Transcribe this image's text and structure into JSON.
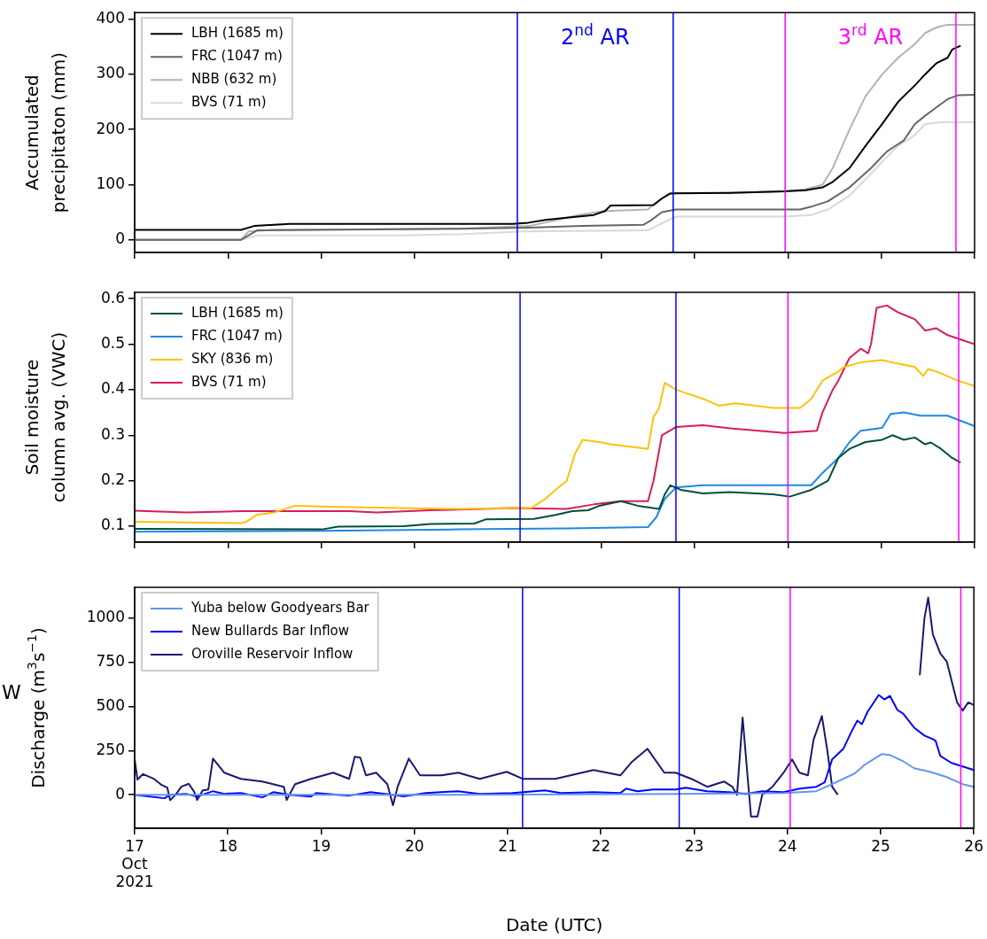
{
  "chart_data": [
    {
      "type": "line",
      "ylabel": "Accumulated precipitaton (mm)",
      "xlim": [
        17,
        26
      ],
      "xticks": [
        17,
        18,
        19,
        20,
        21,
        22,
        23,
        24,
        25,
        26
      ],
      "ylim": [
        -23,
        412
      ],
      "yticks": [
        0,
        100,
        200,
        300,
        400
      ],
      "tick_labels": "y",
      "legend": "top left",
      "marker": "none",
      "series": [
        {
          "name": "LBH (1685 m)",
          "color": "#000000",
          "x": [
            17,
            18.14,
            18.28,
            18.66,
            21.05,
            21.22,
            21.4,
            21.63,
            21.92,
            22.04,
            22.1,
            22.56,
            22.65,
            22.74,
            23.38,
            23.96,
            24.19,
            24.37,
            24.48,
            24.66,
            24.83,
            25.01,
            25.18,
            25.36,
            25.47,
            25.59,
            25.71,
            25.76,
            25.85
          ],
          "values": [
            18,
            18,
            25,
            29,
            29,
            31,
            36,
            40,
            45,
            52,
            62,
            63,
            75,
            84,
            85,
            88,
            90,
            95,
            105,
            130,
            170,
            210,
            250,
            280,
            300,
            320,
            330,
            345,
            352
          ]
        },
        {
          "name": "FRC (1047 m)",
          "color": "#666666",
          "x": [
            17,
            18.14,
            18.31,
            20.47,
            21.22,
            21.8,
            22.45,
            22.53,
            22.65,
            22.8,
            24.13,
            24.25,
            24.43,
            24.66,
            24.89,
            25.06,
            25.24,
            25.36,
            25.47,
            25.59,
            25.71,
            25.82,
            26
          ],
          "values": [
            0,
            0,
            17,
            20,
            22,
            25,
            27,
            35,
            50,
            55,
            55,
            60,
            70,
            95,
            130,
            160,
            180,
            210,
            225,
            240,
            255,
            262,
            263
          ]
        },
        {
          "name": "NBB (632 m)",
          "color": "#b3b3b3",
          "x": [
            17,
            18.14,
            18.22,
            18.49,
            20.47,
            21.22,
            21.51,
            21.75,
            22.04,
            22.5,
            22.56,
            22.74,
            23.38,
            23.96,
            24.19,
            24.37,
            24.48,
            24.66,
            24.83,
            25.01,
            25.18,
            25.36,
            25.47,
            25.59,
            25.71,
            26
          ],
          "values": [
            0,
            0,
            15,
            18,
            20,
            25,
            35,
            45,
            52,
            55,
            65,
            85,
            85,
            88,
            92,
            100,
            130,
            200,
            260,
            300,
            330,
            355,
            375,
            385,
            390,
            390
          ]
        },
        {
          "name": "BVS (71 m)",
          "color": "#d9d9d9",
          "x": [
            17,
            18.14,
            18.31,
            19.88,
            20.47,
            21.16,
            22.5,
            22.65,
            22.8,
            23.96,
            24.25,
            24.43,
            24.66,
            24.89,
            25.06,
            25.18,
            25.36,
            25.47,
            25.64,
            26
          ],
          "values": [
            0,
            0,
            8,
            8,
            10,
            15,
            17,
            30,
            42,
            42,
            45,
            55,
            80,
            120,
            150,
            170,
            190,
            210,
            213,
            213
          ]
        }
      ],
      "ref_lines": [
        {
          "axis": "x",
          "value": 21.1,
          "color": "#0000ff",
          "label": "2$^{nd}$ AR"
        },
        {
          "axis": "x",
          "value": 22.77,
          "color": "#0000ff"
        },
        {
          "axis": "x",
          "value": 23.97,
          "color": "#ff00ff",
          "label": "3$^{rd}$ AR"
        },
        {
          "axis": "x",
          "value": 25.8,
          "color": "#ff00ff"
        }
      ]
    },
    {
      "type": "line",
      "ylabel": "Soil moisture column avg. (VWC)",
      "xlim": [
        17,
        26
      ],
      "xticks": [
        17,
        18,
        19,
        20,
        21,
        22,
        23,
        24,
        25,
        26
      ],
      "ylim": [
        0.065,
        0.614
      ],
      "yticks": [
        0.1,
        0.2,
        0.3,
        0.4,
        0.5,
        0.6
      ],
      "tick_labels": "y",
      "legend": "top left",
      "marker": "none",
      "series": [
        {
          "name": "LBH (1685 m)",
          "color": "#004d40",
          "x": [
            17,
            19.01,
            19.18,
            19.88,
            20.17,
            20.64,
            20.76,
            21.28,
            21.51,
            21.69,
            21.86,
            21.98,
            22.1,
            22.21,
            22.39,
            22.62,
            22.68,
            22.74,
            22.85,
            23.09,
            23.38,
            23.84,
            24.02,
            24.25,
            24.43,
            24.54,
            24.66,
            24.83,
            25.01,
            25.12,
            25.24,
            25.36,
            25.47,
            25.53,
            25.64,
            25.76,
            25.85
          ],
          "values": [
            0.094,
            0.093,
            0.099,
            0.1,
            0.105,
            0.106,
            0.115,
            0.116,
            0.125,
            0.133,
            0.135,
            0.145,
            0.15,
            0.155,
            0.145,
            0.138,
            0.17,
            0.19,
            0.18,
            0.172,
            0.175,
            0.17,
            0.165,
            0.18,
            0.2,
            0.25,
            0.27,
            0.285,
            0.29,
            0.3,
            0.29,
            0.295,
            0.28,
            0.284,
            0.27,
            0.25,
            0.24
          ]
        },
        {
          "name": "FRC (1047 m)",
          "color": "#1e88e5",
          "x": [
            17,
            19.01,
            20.47,
            21.63,
            22.5,
            22.59,
            22.68,
            22.8,
            23.09,
            24.25,
            24.37,
            24.54,
            24.66,
            24.78,
            25.01,
            25.1,
            25.24,
            25.42,
            25.71,
            26
          ],
          "values": [
            0.088,
            0.09,
            0.093,
            0.095,
            0.098,
            0.12,
            0.16,
            0.185,
            0.19,
            0.19,
            0.217,
            0.25,
            0.285,
            0.31,
            0.316,
            0.347,
            0.35,
            0.343,
            0.343,
            0.32
          ]
        },
        {
          "name": "SKY (836 m)",
          "color": "#ffc107",
          "x": [
            17,
            18.14,
            18.19,
            18.31,
            18.49,
            18.72,
            19.3,
            19.88,
            20.47,
            21.05,
            21.25,
            21.4,
            21.51,
            21.63,
            21.72,
            21.8,
            21.98,
            22.1,
            22.5,
            22.56,
            22.62,
            22.68,
            22.8,
            23.09,
            23.26,
            23.44,
            23.84,
            24.13,
            24.25,
            24.37,
            24.54,
            24.6,
            24.78,
            25.01,
            25.12,
            25.36,
            25.45,
            25.5,
            25.59,
            25.82,
            26
          ],
          "values": [
            0.11,
            0.107,
            0.109,
            0.125,
            0.13,
            0.145,
            0.142,
            0.14,
            0.138,
            0.14,
            0.14,
            0.16,
            0.18,
            0.2,
            0.26,
            0.29,
            0.285,
            0.28,
            0.27,
            0.34,
            0.36,
            0.415,
            0.4,
            0.38,
            0.365,
            0.37,
            0.36,
            0.36,
            0.38,
            0.42,
            0.44,
            0.45,
            0.46,
            0.465,
            0.46,
            0.45,
            0.43,
            0.445,
            0.44,
            0.42,
            0.408
          ]
        },
        {
          "name": "BVS (71 m)",
          "color": "#d81b60",
          "x": [
            17,
            17.55,
            18.14,
            19.3,
            19.59,
            20.17,
            21.05,
            21.63,
            21.92,
            22.21,
            22.5,
            22.56,
            22.65,
            22.8,
            23.09,
            23.38,
            23.96,
            24.31,
            24.37,
            24.48,
            24.54,
            24.66,
            24.78,
            24.86,
            24.89,
            24.95,
            25.06,
            25.18,
            25.36,
            25.47,
            25.59,
            25.71,
            26
          ],
          "values": [
            0.134,
            0.13,
            0.133,
            0.133,
            0.13,
            0.135,
            0.14,
            0.138,
            0.148,
            0.155,
            0.155,
            0.2,
            0.3,
            0.318,
            0.322,
            0.315,
            0.305,
            0.31,
            0.35,
            0.4,
            0.42,
            0.47,
            0.49,
            0.48,
            0.5,
            0.58,
            0.585,
            0.57,
            0.555,
            0.53,
            0.535,
            0.52,
            0.5
          ]
        }
      ],
      "ref_lines": [
        {
          "axis": "x",
          "value": 21.13,
          "color": "#0000ff"
        },
        {
          "axis": "x",
          "value": 22.8,
          "color": "#0000ff"
        },
        {
          "axis": "x",
          "value": 24.0,
          "color": "#ff00ff"
        },
        {
          "axis": "x",
          "value": 25.83,
          "color": "#ff00ff"
        }
      ]
    },
    {
      "type": "line",
      "ylabel": "Discharge (m$^{3}$s$^{−1}$)",
      "xlabel": "Date (UTC)",
      "xlim": [
        17,
        26
      ],
      "xticks": [
        {
          "value": 17,
          "label": "17\nOct\n2021"
        },
        18,
        19,
        20,
        21,
        22,
        23,
        24,
        25,
        26
      ],
      "ylim": [
        -190,
        1175
      ],
      "yticks": [
        0,
        250,
        500,
        750,
        1000
      ],
      "legend": "top left",
      "marker": "none",
      "series": [
        {
          "name": "Yuba below Goodyears Bar",
          "color": "#6495ed",
          "x": [
            17,
            20.47,
            22.8,
            23.96,
            24.31,
            24.48,
            24.72,
            24.83,
            24.95,
            25.01,
            25.1,
            25.24,
            25.36,
            25.53,
            25.71,
            25.88,
            26
          ],
          "values": [
            0,
            0,
            5,
            10,
            20,
            60,
            120,
            170,
            210,
            230,
            225,
            190,
            150,
            130,
            100,
            60,
            45
          ]
        },
        {
          "name": "New Bullards Bar Inflow",
          "color": "#0000ff",
          "x": [
            17,
            17.32,
            17.38,
            17.55,
            17.67,
            17.84,
            17.96,
            18.14,
            18.37,
            18.49,
            18.66,
            18.89,
            18.95,
            19.3,
            19.53,
            19.77,
            19.88,
            20.12,
            20.47,
            20.7,
            21.05,
            21.4,
            21.57,
            21.92,
            22.21,
            22.27,
            22.39,
            22.56,
            22.8,
            22.91,
            23.14,
            23.38,
            23.55,
            23.73,
            23.96,
            24.13,
            24.31,
            24.4,
            24.48,
            24.6,
            24.69,
            24.75,
            24.8,
            24.86,
            24.98,
            25.04,
            25.1,
            25.18,
            25.24,
            25.36,
            25.47,
            25.56,
            25.59,
            25.64,
            25.76,
            25.88,
            26
          ],
          "values": [
            0,
            -20,
            0,
            5,
            -10,
            20,
            5,
            10,
            -15,
            15,
            0,
            -10,
            10,
            -5,
            15,
            0,
            -10,
            10,
            20,
            5,
            10,
            25,
            10,
            15,
            10,
            35,
            20,
            30,
            30,
            40,
            20,
            15,
            5,
            20,
            15,
            35,
            45,
            70,
            200,
            260,
            360,
            420,
            400,
            470,
            565,
            540,
            560,
            480,
            460,
            380,
            335,
            315,
            305,
            220,
            180,
            160,
            140
          ]
        },
        {
          "name": "Oroville Reservoir Inflow",
          "color": "#191970",
          "x": [
            17,
            17.03,
            17.09,
            17.2,
            17.29,
            17.35,
            17.38,
            17.44,
            17.5,
            17.58,
            17.64,
            17.67,
            17.73,
            17.79,
            17.84,
            17.96,
            18.14,
            18.37,
            18.6,
            18.63,
            18.72,
            18.89,
            19.13,
            19.3,
            19.36,
            19.42,
            19.48,
            19.59,
            19.71,
            19.77,
            19.82,
            19.94,
            20.06,
            20.29,
            20.47,
            20.7,
            20.99,
            21.16,
            21.51,
            21.92,
            22.21,
            22.33,
            22.5,
            22.68,
            22.8,
            22.97,
            23.14,
            23.32,
            23.41,
            23.46,
            23.52,
            23.58,
            23.61,
            23.68,
            23.73,
            23.84,
            23.96,
            24.05,
            24.13,
            24.22,
            24.28,
            24.37,
            24.43,
            24.48,
            24.54,
            25.0,
            25.42,
            25.47,
            25.51,
            25.56,
            25.64,
            25.71,
            25.82,
            25.88,
            25.94,
            26
          ],
          "values": [
            200,
            86,
            117,
            92,
            55,
            40,
            -31,
            0,
            45,
            62,
            15,
            -30,
            25,
            30,
            205,
            125,
            90,
            75,
            45,
            -30,
            60,
            90,
            125,
            90,
            215,
            210,
            110,
            125,
            60,
            -60,
            45,
            205,
            110,
            110,
            125,
            90,
            130,
            90,
            90,
            140,
            110,
            185,
            260,
            125,
            125,
            90,
            45,
            75,
            45,
            0,
            437,
            60,
            -123,
            -123,
            0,
            45,
            125,
            200,
            125,
            110,
            310,
            446,
            245,
            45,
            0,
            null,
            677,
            1000,
            1117,
            908,
            800,
            754,
            523,
            477,
            523,
            508
          ]
        }
      ],
      "ref_lines": [
        {
          "axis": "x",
          "value": 21.16,
          "color": "#0000ff"
        },
        {
          "axis": "x",
          "value": 22.84,
          "color": "#0000ff"
        },
        {
          "axis": "x",
          "value": 24.03,
          "color": "#ff00ff"
        },
        {
          "axis": "x",
          "value": 25.86,
          "color": "#ff00ff"
        }
      ],
      "annotations": [
        "W"
      ]
    }
  ]
}
